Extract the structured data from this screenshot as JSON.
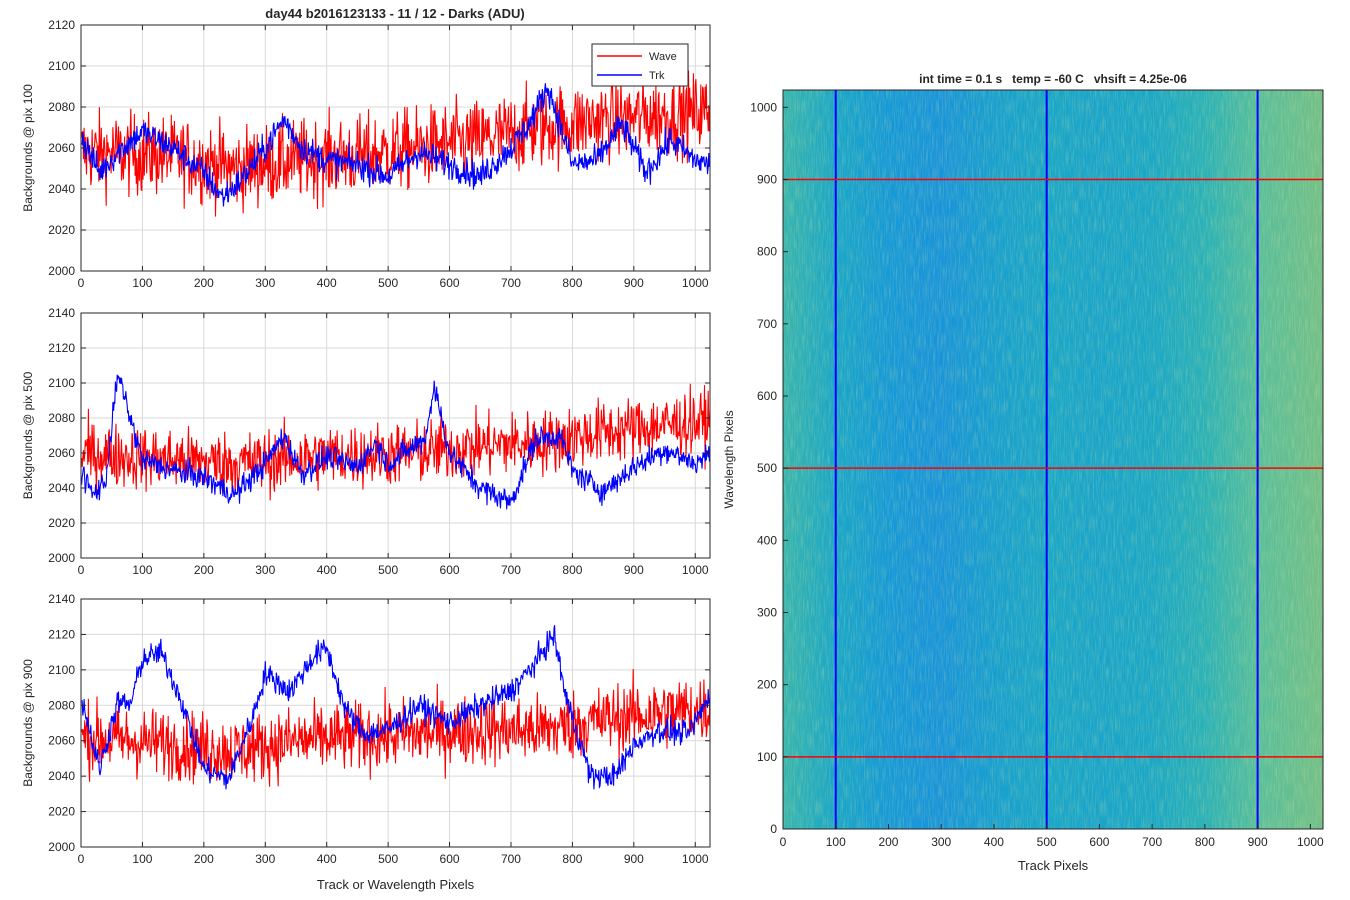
{
  "figure": {
    "title": "day44 b2016123133 - 11 / 12 - Darks (ADU)",
    "heatmap_title": "int time = 0.1 s   temp = -60 C   vhsift = 4.25e-06"
  },
  "colors": {
    "wave": "#ff0000",
    "trk": "#0000ff",
    "grid": "#d9d9d9",
    "axis": "#262626"
  },
  "chart_data": [
    {
      "type": "line",
      "title": "day44 b2016123133 - 11 / 12 - Darks (ADU)",
      "ylabel": "Backgrounds @ pix 100",
      "xlabel": "",
      "xlim": [
        0,
        1024
      ],
      "ylim": [
        2000,
        2120
      ],
      "xticks": [
        0,
        100,
        200,
        300,
        400,
        500,
        600,
        700,
        800,
        900,
        1000
      ],
      "yticks": [
        2000,
        2020,
        2040,
        2060,
        2080,
        2100,
        2120
      ],
      "grid": true,
      "legend": {
        "placement": "top-right",
        "entries": [
          "Wave",
          "Trk"
        ]
      },
      "series": [
        {
          "name": "Wave",
          "color": "#ff0000",
          "noise": 14,
          "lo": 2018,
          "hi": 2118,
          "trend": [
            [
              0,
              2058
            ],
            [
              150,
              2056
            ],
            [
              250,
              2050
            ],
            [
              350,
              2054
            ],
            [
              450,
              2056
            ],
            [
              550,
              2060
            ],
            [
              650,
              2064
            ],
            [
              750,
              2070
            ],
            [
              850,
              2074
            ],
            [
              950,
              2076
            ],
            [
              1024,
              2078
            ]
          ]
        },
        {
          "name": "Trk",
          "color": "#0000ff",
          "noise": 5,
          "lo": 2020,
          "hi": 2098,
          "trend": [
            [
              0,
              2066
            ],
            [
              30,
              2048
            ],
            [
              60,
              2058
            ],
            [
              100,
              2068
            ],
            [
              150,
              2060
            ],
            [
              200,
              2048
            ],
            [
              230,
              2036
            ],
            [
              260,
              2044
            ],
            [
              300,
              2060
            ],
            [
              330,
              2074
            ],
            [
              360,
              2060
            ],
            [
              400,
              2054
            ],
            [
              450,
              2052
            ],
            [
              500,
              2046
            ],
            [
              550,
              2058
            ],
            [
              600,
              2052
            ],
            [
              650,
              2046
            ],
            [
              700,
              2060
            ],
            [
              730,
              2072
            ],
            [
              760,
              2090
            ],
            [
              800,
              2052
            ],
            [
              840,
              2054
            ],
            [
              880,
              2072
            ],
            [
              920,
              2048
            ],
            [
              960,
              2064
            ],
            [
              1000,
              2054
            ],
            [
              1024,
              2052
            ]
          ]
        }
      ]
    },
    {
      "type": "line",
      "title": "",
      "ylabel": "Backgrounds @ pix 500",
      "xlabel": "",
      "xlim": [
        0,
        1024
      ],
      "ylim": [
        2000,
        2140
      ],
      "xticks": [
        0,
        100,
        200,
        300,
        400,
        500,
        600,
        700,
        800,
        900,
        1000
      ],
      "yticks": [
        2000,
        2020,
        2040,
        2060,
        2080,
        2100,
        2120,
        2140
      ],
      "grid": true,
      "series": [
        {
          "name": "Wave",
          "color": "#ff0000",
          "noise": 13,
          "lo": 2018,
          "hi": 2122,
          "trend": [
            [
              0,
              2060
            ],
            [
              150,
              2056
            ],
            [
              250,
              2054
            ],
            [
              400,
              2058
            ],
            [
              550,
              2060
            ],
            [
              650,
              2064
            ],
            [
              750,
              2066
            ],
            [
              850,
              2072
            ],
            [
              950,
              2076
            ],
            [
              1024,
              2078
            ]
          ]
        },
        {
          "name": "Trk",
          "color": "#0000ff",
          "noise": 5,
          "lo": 2018,
          "hi": 2106,
          "trend": [
            [
              0,
              2050
            ],
            [
              20,
              2036
            ],
            [
              40,
              2044
            ],
            [
              60,
              2106
            ],
            [
              80,
              2080
            ],
            [
              100,
              2056
            ],
            [
              150,
              2050
            ],
            [
              200,
              2046
            ],
            [
              250,
              2036
            ],
            [
              300,
              2054
            ],
            [
              330,
              2070
            ],
            [
              360,
              2048
            ],
            [
              400,
              2058
            ],
            [
              450,
              2052
            ],
            [
              480,
              2066
            ],
            [
              500,
              2054
            ],
            [
              560,
              2068
            ],
            [
              575,
              2098
            ],
            [
              600,
              2060
            ],
            [
              650,
              2040
            ],
            [
              700,
              2032
            ],
            [
              740,
              2068
            ],
            [
              780,
              2070
            ],
            [
              800,
              2050
            ],
            [
              850,
              2038
            ],
            [
              900,
              2052
            ],
            [
              950,
              2062
            ],
            [
              1000,
              2054
            ],
            [
              1024,
              2060
            ]
          ]
        }
      ]
    },
    {
      "type": "line",
      "title": "",
      "ylabel": "Backgrounds @ pix 900",
      "xlabel": "Track or Wavelength Pixels",
      "xlim": [
        0,
        1024
      ],
      "ylim": [
        2000,
        2140
      ],
      "xticks": [
        0,
        100,
        200,
        300,
        400,
        500,
        600,
        700,
        800,
        900,
        1000
      ],
      "yticks": [
        2000,
        2020,
        2040,
        2060,
        2080,
        2100,
        2120,
        2140
      ],
      "grid": true,
      "series": [
        {
          "name": "Wave",
          "color": "#ff0000",
          "noise": 14,
          "lo": 2018,
          "hi": 2122,
          "trend": [
            [
              0,
              2062
            ],
            [
              150,
              2058
            ],
            [
              250,
              2054
            ],
            [
              350,
              2060
            ],
            [
              450,
              2062
            ],
            [
              550,
              2064
            ],
            [
              650,
              2066
            ],
            [
              750,
              2066
            ],
            [
              850,
              2072
            ],
            [
              950,
              2076
            ],
            [
              1024,
              2078
            ]
          ]
        },
        {
          "name": "Trk",
          "color": "#0000ff",
          "noise": 5,
          "lo": 2022,
          "hi": 2126,
          "trend": [
            [
              0,
              2086
            ],
            [
              30,
              2044
            ],
            [
              60,
              2082
            ],
            [
              80,
              2080
            ],
            [
              100,
              2106
            ],
            [
              130,
              2110
            ],
            [
              160,
              2086
            ],
            [
              200,
              2044
            ],
            [
              240,
              2038
            ],
            [
              280,
              2074
            ],
            [
              300,
              2098
            ],
            [
              340,
              2088
            ],
            [
              380,
              2108
            ],
            [
              400,
              2112
            ],
            [
              430,
              2078
            ],
            [
              460,
              2064
            ],
            [
              500,
              2066
            ],
            [
              550,
              2080
            ],
            [
              600,
              2070
            ],
            [
              650,
              2080
            ],
            [
              700,
              2088
            ],
            [
              740,
              2104
            ],
            [
              770,
              2120
            ],
            [
              790,
              2084
            ],
            [
              830,
              2040
            ],
            [
              870,
              2040
            ],
            [
              900,
              2058
            ],
            [
              940,
              2066
            ],
            [
              990,
              2064
            ],
            [
              1024,
              2086
            ]
          ]
        }
      ]
    },
    {
      "type": "heatmap",
      "title": "int time = 0.1 s   temp = -60 C   vhsift = 4.25e-06",
      "xlabel": "Track Pixels",
      "ylabel": "Wavelength Pixels",
      "xlim": [
        0,
        1024
      ],
      "ylim": [
        0,
        1024
      ],
      "xticks": [
        0,
        100,
        200,
        300,
        400,
        500,
        600,
        700,
        800,
        900,
        1000
      ],
      "yticks": [
        0,
        100,
        200,
        300,
        400,
        500,
        600,
        700,
        800,
        900,
        1000
      ],
      "colormap": [
        "#2b77e6",
        "#1698d8",
        "#1cacc0",
        "#5bbf9a",
        "#b0c05a"
      ],
      "column_profile": [
        [
          0,
          0.62
        ],
        [
          100,
          0.42
        ],
        [
          200,
          0.26
        ],
        [
          300,
          0.22
        ],
        [
          400,
          0.34
        ],
        [
          500,
          0.42
        ],
        [
          600,
          0.4
        ],
        [
          700,
          0.44
        ],
        [
          800,
          0.56
        ],
        [
          900,
          0.74
        ],
        [
          1024,
          0.82
        ]
      ],
      "overlays": {
        "vertical_lines": {
          "x": [
            100,
            500,
            900
          ],
          "color": "#0000ff"
        },
        "horizontal_lines": {
          "y": [
            100,
            500,
            900
          ],
          "color": "#ff0000"
        }
      }
    }
  ]
}
